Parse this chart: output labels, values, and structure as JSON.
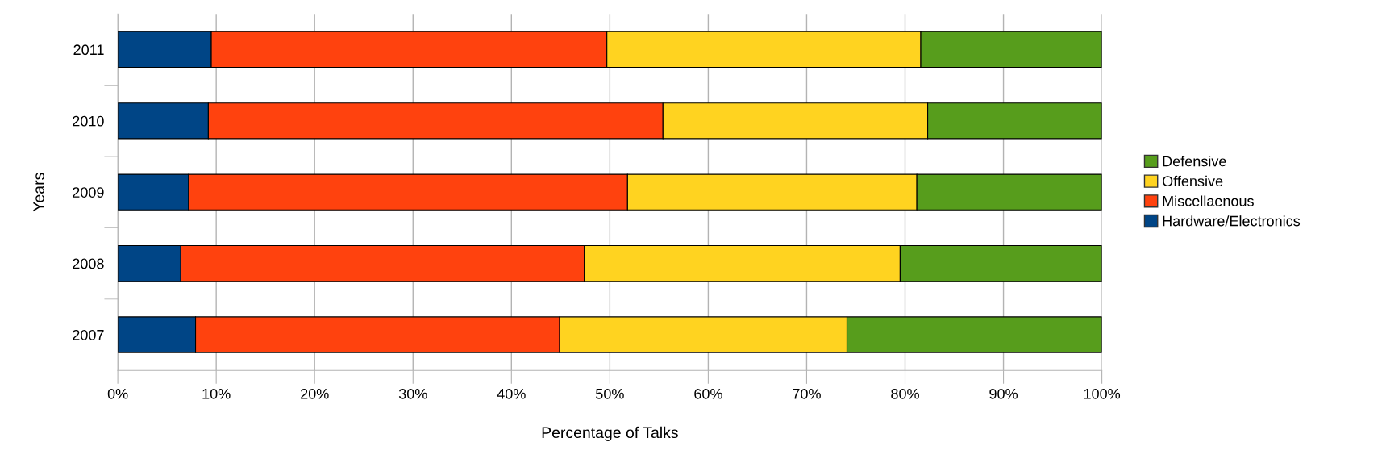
{
  "chart_data": {
    "type": "bar",
    "orientation": "horizontal",
    "stacked": true,
    "xlabel": "Percentage of Talks",
    "ylabel": "Years",
    "categories": [
      "2011",
      "2010",
      "2009",
      "2008",
      "2007"
    ],
    "series": [
      {
        "name": "Hardware/Electronics",
        "color": "#004586",
        "values": [
          9.5,
          9.2,
          7.2,
          6.4,
          7.9
        ]
      },
      {
        "name": "Miscellaenous",
        "color": "#ff420e",
        "values": [
          40.2,
          46.2,
          44.6,
          41.0,
          37.0
        ]
      },
      {
        "name": "Offensive",
        "color": "#ffd320",
        "values": [
          31.9,
          26.9,
          29.4,
          32.1,
          29.2
        ]
      },
      {
        "name": "Defensive",
        "color": "#579d1c",
        "values": [
          18.4,
          17.7,
          18.8,
          20.5,
          25.9
        ]
      }
    ],
    "xlim": [
      0,
      100
    ],
    "xticks": [
      {
        "value": 0,
        "label": "0%"
      },
      {
        "value": 10,
        "label": "10%"
      },
      {
        "value": 20,
        "label": "20%"
      },
      {
        "value": 30,
        "label": "30%"
      },
      {
        "value": 40,
        "label": "40%"
      },
      {
        "value": 50,
        "label": "50%"
      },
      {
        "value": 60,
        "label": "60%"
      },
      {
        "value": 70,
        "label": "70%"
      },
      {
        "value": 80,
        "label": "80%"
      },
      {
        "value": 90,
        "label": "90%"
      },
      {
        "value": 100,
        "label": "100%"
      }
    ],
    "grid": "x",
    "legend": "right"
  }
}
